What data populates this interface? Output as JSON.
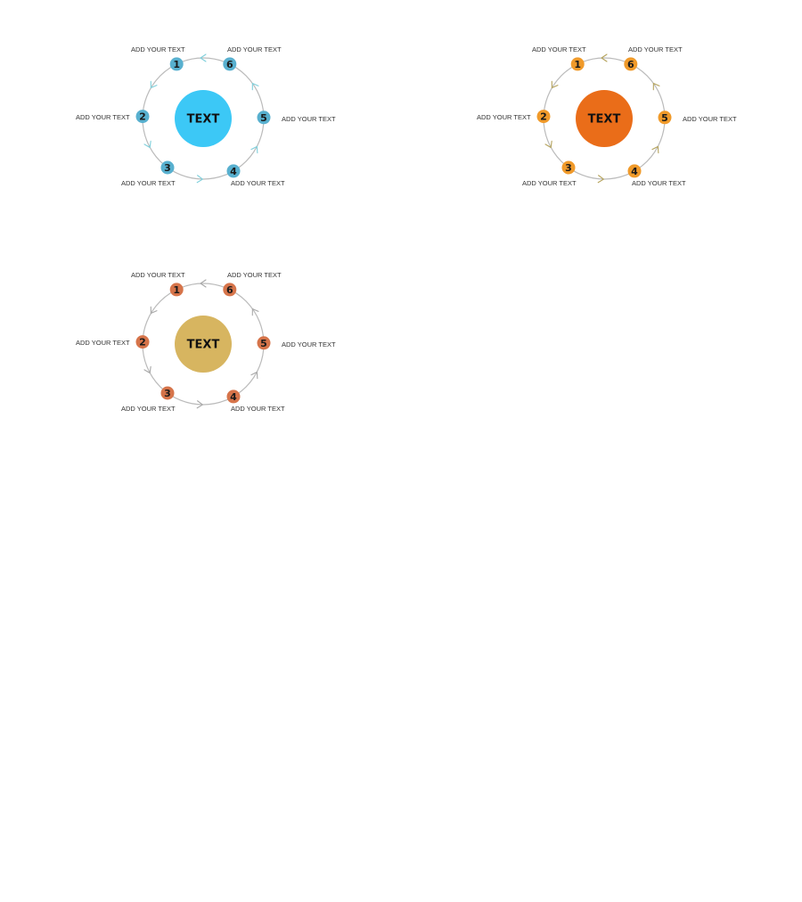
{
  "diagrams": [
    {
      "center_text": "TEXT",
      "center_color": "#3cc8f6",
      "node_color": "#58b0cf",
      "arrow_color": "#7fd0dc",
      "ring_color": "#bbbbbb",
      "nodes": [
        {
          "num": "1",
          "label": "ADD YOUR TEXT"
        },
        {
          "num": "2",
          "label": "ADD YOUR TEXT"
        },
        {
          "num": "3",
          "label": "ADD YOUR TEXT"
        },
        {
          "num": "4",
          "label": "ADD YOUR TEXT"
        },
        {
          "num": "5",
          "label": "ADD YOUR TEXT"
        },
        {
          "num": "6",
          "label": "ADD YOUR TEXT"
        }
      ]
    },
    {
      "center_text": "TEXT",
      "center_color": "#ea6d19",
      "node_color": "#f09a2a",
      "arrow_color": "#b5a35c",
      "ring_color": "#bbbbbb",
      "nodes": [
        {
          "num": "1",
          "label": "ADD YOUR TEXT"
        },
        {
          "num": "2",
          "label": "ADD YOUR TEXT"
        },
        {
          "num": "3",
          "label": "ADD YOUR TEXT"
        },
        {
          "num": "4",
          "label": "ADD YOUR TEXT"
        },
        {
          "num": "5",
          "label": "ADD YOUR TEXT"
        },
        {
          "num": "6",
          "label": "ADD YOUR TEXT"
        }
      ]
    },
    {
      "center_text": "TEXT",
      "center_color": "#d7b560",
      "node_color": "#d6744a",
      "arrow_color": "#a8a8a8",
      "ring_color": "#bbbbbb",
      "nodes": [
        {
          "num": "1",
          "label": "ADD YOUR TEXT"
        },
        {
          "num": "2",
          "label": "ADD YOUR TEXT"
        },
        {
          "num": "3",
          "label": "ADD YOUR TEXT"
        },
        {
          "num": "4",
          "label": "ADD YOUR TEXT"
        },
        {
          "num": "5",
          "label": "ADD YOUR TEXT"
        },
        {
          "num": "6",
          "label": "ADD YOUR TEXT"
        }
      ]
    }
  ]
}
